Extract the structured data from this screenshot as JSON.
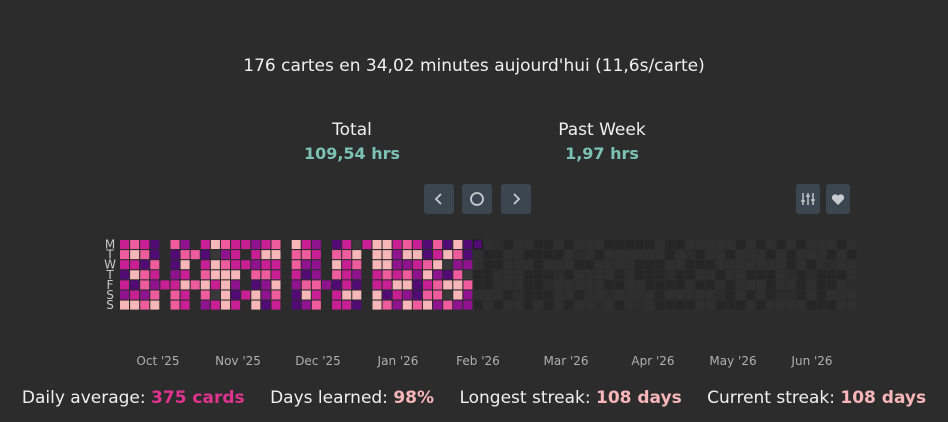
{
  "summary": "176 cartes en 34,02 minutes aujourd'hui (11,6s/carte)",
  "stats": {
    "total_label": "Total",
    "total_value": "109,54 hrs",
    "week_label": "Past Week",
    "week_value": "1,97 hrs"
  },
  "controls": {
    "prev_icon": "chevron-left-icon",
    "today_icon": "circle-icon",
    "next_icon": "chevron-right-icon",
    "options_icon": "sliders-icon",
    "favorite_icon": "heart-icon"
  },
  "colors": {
    "background": "#2c2c2c",
    "button_bg": "#3c4650",
    "accent_teal": "#7cc1b5",
    "accent_pink": "#e0338f",
    "accent_light_pink": "#f7b6b8",
    "empty_future": "#2f2f2f",
    "empty_past": "#383838",
    "levels": [
      "#f7b6b8",
      "#ee5c9e",
      "#c81f95",
      "#8f138f",
      "#520a75"
    ]
  },
  "heatmap": {
    "weekday_labels": [
      "M",
      "T",
      "W",
      "T",
      "F",
      "S",
      "S"
    ],
    "month_labels": [
      "Oct '25",
      "Nov '25",
      "Dec '25",
      "Jan '26",
      "Feb '26",
      "Mar '26",
      "Apr '26",
      "May '26",
      "Jun '26"
    ]
  },
  "footer": {
    "daily_label": "Daily average:",
    "daily_value": "375 cards",
    "learned_label": "Days learned:",
    "learned_value": "98%",
    "longest_label": "Longest streak:",
    "longest_value": "108 days",
    "current_label": "Current streak:",
    "current_value": "108 days"
  }
}
